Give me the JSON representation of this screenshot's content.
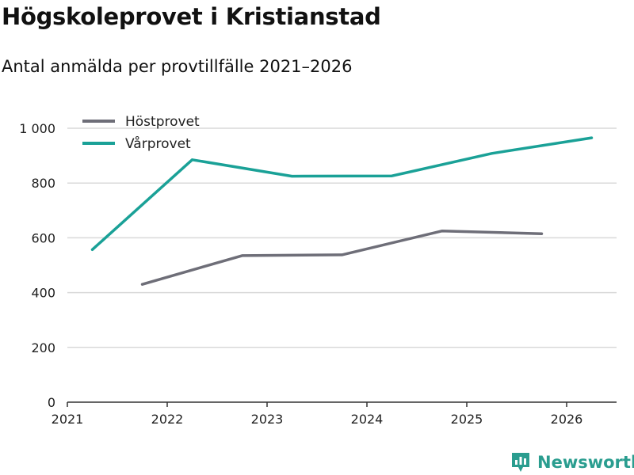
{
  "title": "Högskoleprovet i Kristianstad",
  "subtitle": "Antal anmälda per provtillfälle 2021–2026",
  "brand": {
    "name": "Newsworthy",
    "icon": "newsworthy-logo-icon",
    "color": "#2a9d8f"
  },
  "chart_data": {
    "type": "line",
    "title": "Högskoleprovet i Kristianstad",
    "subtitle": "Antal anmälda per provtillfälle 2021–2026",
    "xlabel": "",
    "ylabel": "",
    "xlim": [
      2021,
      2026.5
    ],
    "ylim": [
      0,
      1000
    ],
    "x_ticks": [
      {
        "value": 2021,
        "label": "2021"
      },
      {
        "value": 2022,
        "label": "2022"
      },
      {
        "value": 2023,
        "label": "2023"
      },
      {
        "value": 2024,
        "label": "2024"
      },
      {
        "value": 2025,
        "label": "2025"
      },
      {
        "value": 2026,
        "label": "2026"
      }
    ],
    "y_ticks": [
      {
        "value": 0,
        "label": "0"
      },
      {
        "value": 200,
        "label": "200"
      },
      {
        "value": 400,
        "label": "400"
      },
      {
        "value": 600,
        "label": "600"
      },
      {
        "value": 800,
        "label": "800"
      },
      {
        "value": 1000,
        "label": "1 000"
      }
    ],
    "grid": true,
    "legend_position": "top-left",
    "series": [
      {
        "name": "Höstprovet",
        "color": "#6e6e78",
        "points": [
          {
            "x": 2021.75,
            "y": 430
          },
          {
            "x": 2022.75,
            "y": 535
          },
          {
            "x": 2023.75,
            "y": 538
          },
          {
            "x": 2024.75,
            "y": 625
          },
          {
            "x": 2025.75,
            "y": 615
          }
        ]
      },
      {
        "name": "Vårprovet",
        "color": "#1aa197",
        "points": [
          {
            "x": 2021.25,
            "y": 557
          },
          {
            "x": 2022.25,
            "y": 885
          },
          {
            "x": 2023.25,
            "y": 825
          },
          {
            "x": 2024.25,
            "y": 826
          },
          {
            "x": 2025.25,
            "y": 908
          },
          {
            "x": 2026.25,
            "y": 965
          }
        ]
      }
    ]
  }
}
